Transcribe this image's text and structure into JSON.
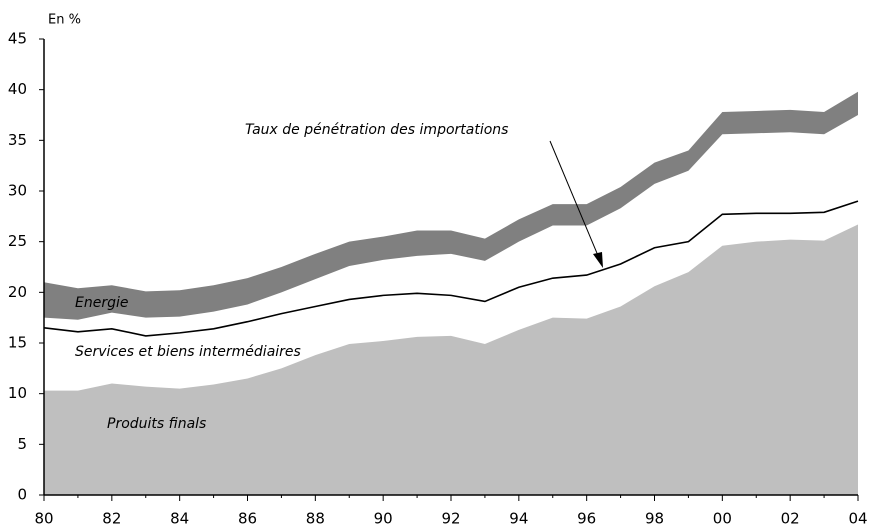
{
  "chart_data": {
    "type": "area",
    "y_label": "En %",
    "categories": [
      "80",
      null,
      "82",
      null,
      "84",
      null,
      "86",
      null,
      "88",
      null,
      "90",
      null,
      "92",
      null,
      "94",
      null,
      "96",
      null,
      "98",
      null,
      "00",
      null,
      "02",
      null,
      "04"
    ],
    "ylim": [
      0,
      45
    ],
    "yticks": [
      0,
      5,
      10,
      15,
      20,
      25,
      30,
      35,
      40,
      45
    ],
    "series": [
      {
        "name": "Produits finals",
        "kind": "area",
        "color": "#bfbfbf",
        "values": [
          10.3,
          10.3,
          11.0,
          10.7,
          10.5,
          10.9,
          11.5,
          12.5,
          13.8,
          14.9,
          15.2,
          15.6,
          15.7,
          14.9,
          16.3,
          17.5,
          17.4,
          18.6,
          20.6,
          22.0,
          24.6,
          25.0,
          25.2,
          25.1,
          26.7
        ]
      },
      {
        "name": "Taux de pénétration des importations",
        "kind": "line",
        "color": "#000000",
        "values": [
          16.5,
          16.1,
          16.4,
          15.7,
          16.0,
          16.4,
          17.1,
          17.9,
          18.6,
          19.3,
          19.7,
          19.9,
          19.7,
          19.1,
          20.5,
          21.4,
          21.7,
          22.8,
          24.4,
          25.0,
          27.7,
          27.8,
          27.8,
          27.9,
          29.0
        ]
      },
      {
        "name": "Energie",
        "kind": "band",
        "color": "#808080",
        "low": [
          17.5,
          17.3,
          18.0,
          17.5,
          17.6,
          18.1,
          18.8,
          20.0,
          21.3,
          22.6,
          23.2,
          23.6,
          23.8,
          23.1,
          25.0,
          26.6,
          26.6,
          28.3,
          30.7,
          32.0,
          35.6,
          35.7,
          35.8,
          35.6,
          37.5
        ],
        "values": [
          21.0,
          20.4,
          20.7,
          20.1,
          20.2,
          20.7,
          21.4,
          22.5,
          23.8,
          25.0,
          25.5,
          26.1,
          26.1,
          25.3,
          27.2,
          28.7,
          28.7,
          30.4,
          32.8,
          34.0,
          37.8,
          37.9,
          38.0,
          37.8,
          39.8
        ]
      }
    ],
    "annotations": [
      "Services et biens intermédiaires"
    ]
  }
}
